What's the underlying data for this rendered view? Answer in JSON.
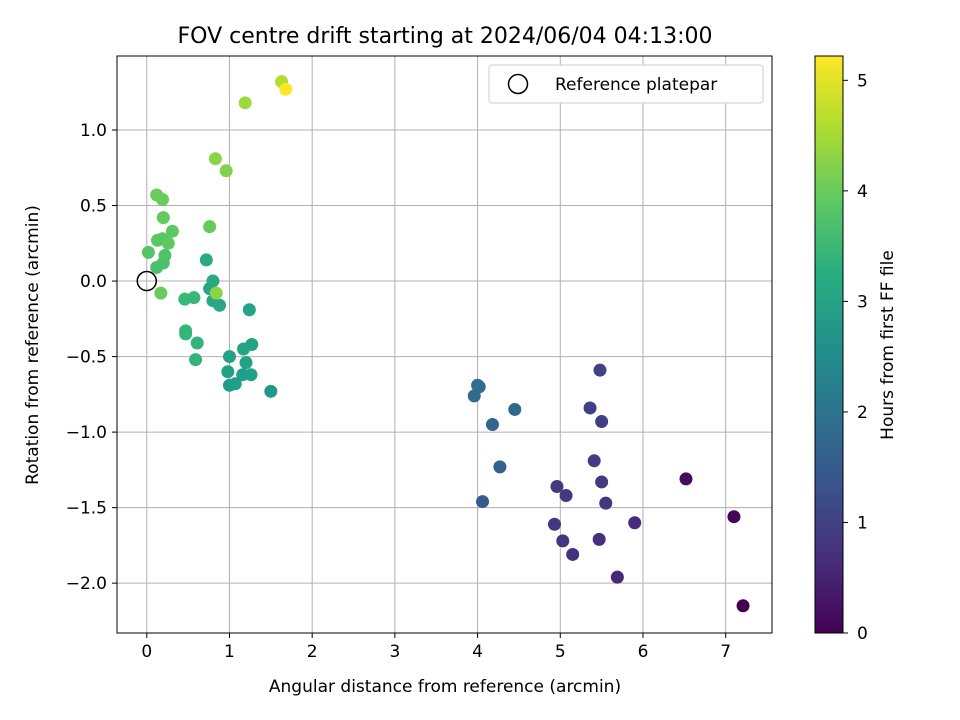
{
  "chart_data": {
    "type": "scatter",
    "title": "FOV centre drift starting at 2024/06/04 04:13:00",
    "xlabel": "Angular distance from reference (arcmin)",
    "ylabel": "Rotation from reference (arcmin)",
    "xlim": [
      -0.36,
      7.56
    ],
    "ylim": [
      -2.33,
      1.49
    ],
    "x_ticks": [
      0,
      1,
      2,
      3,
      4,
      5,
      6,
      7
    ],
    "x_tick_labels": [
      "0",
      "1",
      "2",
      "3",
      "4",
      "5",
      "6",
      "7"
    ],
    "y_ticks": [
      -2.0,
      -1.5,
      -1.0,
      -0.5,
      0.0,
      0.5,
      1.0
    ],
    "y_tick_labels": [
      "−2.0",
      "−1.5",
      "−1.0",
      "−0.5",
      "0.0",
      "0.5",
      "1.0"
    ],
    "grid": true,
    "legend": {
      "placement": "top-right",
      "label": "Reference platepar"
    },
    "reference_point": {
      "x": 0.0,
      "y": 0.0
    },
    "colorbar": {
      "label": "Hours from first FF file",
      "colormap": "viridis",
      "range": [
        0,
        5.22
      ],
      "ticks": [
        0,
        1,
        2,
        3,
        4,
        5
      ],
      "tick_labels": [
        "0",
        "1",
        "2",
        "3",
        "4",
        "5"
      ]
    },
    "points": [
      {
        "x": 7.21,
        "y": -2.15,
        "c": 0.0
      },
      {
        "x": 7.1,
        "y": -1.56,
        "c": 0.05
      },
      {
        "x": 6.52,
        "y": -1.31,
        "c": 0.15
      },
      {
        "x": 5.69,
        "y": -1.96,
        "c": 0.6
      },
      {
        "x": 5.9,
        "y": -1.6,
        "c": 0.65
      },
      {
        "x": 5.47,
        "y": -1.71,
        "c": 0.7
      },
      {
        "x": 5.15,
        "y": -1.81,
        "c": 0.75
      },
      {
        "x": 5.03,
        "y": -1.72,
        "c": 0.8
      },
      {
        "x": 4.93,
        "y": -1.61,
        "c": 0.82
      },
      {
        "x": 5.55,
        "y": -1.47,
        "c": 0.85
      },
      {
        "x": 5.07,
        "y": -1.42,
        "c": 0.88
      },
      {
        "x": 4.96,
        "y": -1.36,
        "c": 0.9
      },
      {
        "x": 5.5,
        "y": -1.33,
        "c": 0.92
      },
      {
        "x": 5.41,
        "y": -1.19,
        "c": 0.95
      },
      {
        "x": 5.5,
        "y": -0.93,
        "c": 0.98
      },
      {
        "x": 5.36,
        "y": -0.84,
        "c": 1.0
      },
      {
        "x": 5.48,
        "y": -0.59,
        "c": 1.05
      },
      {
        "x": 4.06,
        "y": -1.46,
        "c": 1.5
      },
      {
        "x": 4.27,
        "y": -1.23,
        "c": 1.6
      },
      {
        "x": 4.18,
        "y": -0.95,
        "c": 1.7
      },
      {
        "x": 4.45,
        "y": -0.85,
        "c": 1.75
      },
      {
        "x": 3.96,
        "y": -0.76,
        "c": 1.8
      },
      {
        "x": 4.0,
        "y": -0.69,
        "c": 1.85
      },
      {
        "x": 4.02,
        "y": -0.7,
        "c": 1.9
      },
      {
        "x": 1.5,
        "y": -0.73,
        "c": 2.8
      },
      {
        "x": 1.0,
        "y": -0.69,
        "c": 2.85
      },
      {
        "x": 1.07,
        "y": -0.68,
        "c": 2.9
      },
      {
        "x": 1.16,
        "y": -0.62,
        "c": 2.9
      },
      {
        "x": 1.26,
        "y": -0.62,
        "c": 2.95
      },
      {
        "x": 0.98,
        "y": -0.6,
        "c": 2.95
      },
      {
        "x": 1.2,
        "y": -0.54,
        "c": 3.0
      },
      {
        "x": 1.0,
        "y": -0.5,
        "c": 3.0
      },
      {
        "x": 1.27,
        "y": -0.42,
        "c": 3.0
      },
      {
        "x": 1.17,
        "y": -0.45,
        "c": 3.05
      },
      {
        "x": 1.24,
        "y": -0.19,
        "c": 3.05
      },
      {
        "x": 0.88,
        "y": -0.16,
        "c": 3.1
      },
      {
        "x": 0.8,
        "y": -0.13,
        "c": 3.1
      },
      {
        "x": 0.76,
        "y": -0.05,
        "c": 3.1
      },
      {
        "x": 0.8,
        "y": 0.0,
        "c": 3.15
      },
      {
        "x": 0.72,
        "y": 0.14,
        "c": 3.15
      },
      {
        "x": 0.59,
        "y": -0.52,
        "c": 3.4
      },
      {
        "x": 0.61,
        "y": -0.41,
        "c": 3.4
      },
      {
        "x": 0.47,
        "y": -0.35,
        "c": 3.45
      },
      {
        "x": 0.47,
        "y": -0.33,
        "c": 3.45
      },
      {
        "x": 0.46,
        "y": -0.12,
        "c": 3.5
      },
      {
        "x": 0.57,
        "y": -0.11,
        "c": 3.5
      },
      {
        "x": 0.2,
        "y": 0.12,
        "c": 3.7
      },
      {
        "x": 0.22,
        "y": 0.17,
        "c": 3.75
      },
      {
        "x": 0.12,
        "y": 0.09,
        "c": 3.7
      },
      {
        "x": 0.02,
        "y": 0.19,
        "c": 3.8
      },
      {
        "x": 0.13,
        "y": 0.27,
        "c": 3.85
      },
      {
        "x": 0.19,
        "y": 0.28,
        "c": 3.85
      },
      {
        "x": 0.26,
        "y": 0.25,
        "c": 3.9
      },
      {
        "x": 0.31,
        "y": 0.33,
        "c": 3.9
      },
      {
        "x": 0.2,
        "y": 0.42,
        "c": 3.95
      },
      {
        "x": 0.76,
        "y": 0.36,
        "c": 3.95
      },
      {
        "x": 0.12,
        "y": 0.57,
        "c": 4.0
      },
      {
        "x": 0.19,
        "y": 0.54,
        "c": 4.0
      },
      {
        "x": 0.17,
        "y": -0.08,
        "c": 4.0
      },
      {
        "x": 0.84,
        "y": -0.08,
        "c": 4.3
      },
      {
        "x": 0.96,
        "y": 0.73,
        "c": 4.2
      },
      {
        "x": 0.83,
        "y": 0.81,
        "c": 4.3
      },
      {
        "x": 1.19,
        "y": 1.18,
        "c": 4.45
      },
      {
        "x": 1.63,
        "y": 1.32,
        "c": 4.6
      },
      {
        "x": 1.68,
        "y": 1.27,
        "c": 5.22
      }
    ]
  }
}
